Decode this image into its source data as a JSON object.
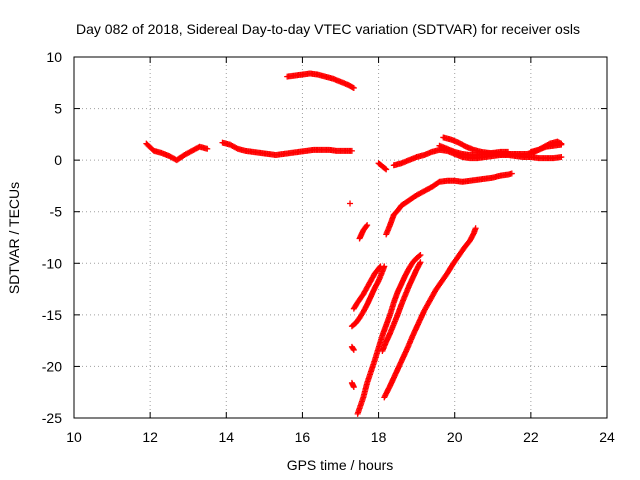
{
  "chart_data": {
    "type": "scatter",
    "title": "Day 082 of 2018, Sidereal Day-to-day VTEC variation (SDTVAR) for receiver osls",
    "xlabel": "GPS time / hours",
    "ylabel": "SDTVAR / TECUs",
    "xlim": [
      10,
      24
    ],
    "ylim": [
      -25,
      10
    ],
    "x_ticks": [
      "10",
      "12",
      "14",
      "16",
      "18",
      "20",
      "22",
      "24"
    ],
    "y_ticks": [
      "10",
      "5",
      "0",
      "-5",
      "-10",
      "-15",
      "-20",
      "-25"
    ],
    "grid": true,
    "marker_color": "#ff0000",
    "series": [
      {
        "points": [
          [
            11.9,
            1.6
          ],
          [
            12.1,
            0.9
          ],
          [
            12.3,
            0.7
          ],
          [
            12.5,
            0.4
          ],
          [
            12.7,
            0.0
          ],
          [
            12.9,
            0.5
          ],
          [
            13.1,
            0.9
          ],
          [
            13.3,
            1.3
          ],
          [
            13.5,
            1.1
          ]
        ]
      },
      {
        "points": [
          [
            13.9,
            1.7
          ],
          [
            14.1,
            1.5
          ],
          [
            14.3,
            1.1
          ],
          [
            14.5,
            0.9
          ],
          [
            14.7,
            0.8
          ],
          [
            14.9,
            0.7
          ],
          [
            15.1,
            0.6
          ],
          [
            15.3,
            0.5
          ],
          [
            15.5,
            0.6
          ],
          [
            15.7,
            0.7
          ],
          [
            15.9,
            0.8
          ],
          [
            16.1,
            0.9
          ],
          [
            16.3,
            1.0
          ],
          [
            16.5,
            1.0
          ],
          [
            16.7,
            1.0
          ],
          [
            16.9,
            0.9
          ],
          [
            17.1,
            0.9
          ],
          [
            17.3,
            0.9
          ]
        ]
      },
      {
        "points": [
          [
            15.6,
            8.1
          ],
          [
            15.8,
            8.2
          ],
          [
            16.0,
            8.3
          ],
          [
            16.2,
            8.4
          ],
          [
            16.4,
            8.3
          ],
          [
            16.6,
            8.1
          ],
          [
            16.8,
            7.9
          ],
          [
            17.0,
            7.6
          ],
          [
            17.2,
            7.3
          ],
          [
            17.35,
            7.0
          ]
        ]
      },
      {
        "points": [
          [
            18.4,
            -0.5
          ],
          [
            18.6,
            -0.3
          ],
          [
            18.8,
            0.0
          ],
          [
            19.0,
            0.3
          ],
          [
            19.2,
            0.5
          ],
          [
            19.4,
            0.8
          ],
          [
            19.6,
            1.0
          ],
          [
            19.8,
            0.9
          ],
          [
            20.0,
            0.6
          ],
          [
            20.2,
            0.3
          ],
          [
            20.4,
            0.2
          ],
          [
            20.6,
            0.2
          ],
          [
            20.8,
            0.3
          ],
          [
            21.0,
            0.4
          ],
          [
            21.2,
            0.5
          ],
          [
            21.4,
            0.5
          ],
          [
            21.6,
            0.4
          ],
          [
            21.8,
            0.3
          ],
          [
            22.0,
            0.3
          ],
          [
            22.2,
            0.2
          ],
          [
            22.4,
            0.2
          ],
          [
            22.6,
            0.2
          ],
          [
            22.8,
            0.3
          ]
        ]
      },
      {
        "points": [
          [
            19.7,
            2.2
          ],
          [
            19.9,
            2.0
          ],
          [
            20.1,
            1.7
          ],
          [
            20.3,
            1.3
          ],
          [
            20.5,
            1.0
          ],
          [
            20.7,
            0.8
          ],
          [
            20.9,
            0.7
          ],
          [
            21.1,
            0.6
          ],
          [
            21.3,
            0.6
          ],
          [
            21.5,
            0.6
          ],
          [
            21.7,
            0.6
          ],
          [
            21.9,
            0.6
          ],
          [
            22.1,
            0.8
          ],
          [
            22.3,
            1.2
          ],
          [
            22.5,
            1.6
          ],
          [
            22.7,
            1.8
          ],
          [
            22.8,
            1.6
          ]
        ]
      },
      {
        "points": [
          [
            19.6,
            1.4
          ],
          [
            19.8,
            1.1
          ],
          [
            20.0,
            0.8
          ],
          [
            20.2,
            0.6
          ],
          [
            20.4,
            0.5
          ],
          [
            20.6,
            0.5
          ],
          [
            20.8,
            0.6
          ],
          [
            21.0,
            0.7
          ],
          [
            21.2,
            0.8
          ],
          [
            21.4,
            0.8
          ]
        ]
      },
      {
        "points": [
          [
            22.0,
            0.8
          ],
          [
            22.2,
            1.0
          ],
          [
            22.4,
            1.3
          ],
          [
            22.6,
            1.4
          ],
          [
            22.8,
            1.5
          ]
        ]
      },
      {
        "points": [
          [
            18.0,
            -0.3
          ],
          [
            18.1,
            -0.6
          ],
          [
            18.2,
            -0.9
          ]
        ]
      },
      {
        "points": [
          [
            18.2,
            -7.2
          ],
          [
            18.3,
            -6.3
          ],
          [
            18.4,
            -5.3
          ],
          [
            18.5,
            -4.9
          ],
          [
            18.6,
            -4.4
          ],
          [
            18.8,
            -3.9
          ],
          [
            19.0,
            -3.4
          ],
          [
            19.2,
            -3.0
          ],
          [
            19.4,
            -2.6
          ],
          [
            19.6,
            -2.1
          ],
          [
            19.8,
            -2.0
          ],
          [
            20.0,
            -2.0
          ],
          [
            20.2,
            -2.1
          ],
          [
            20.4,
            -2.0
          ],
          [
            20.6,
            -1.9
          ],
          [
            20.8,
            -1.8
          ],
          [
            21.0,
            -1.7
          ],
          [
            21.2,
            -1.5
          ],
          [
            21.4,
            -1.4
          ],
          [
            21.5,
            -1.3
          ]
        ]
      },
      {
        "points": [
          [
            17.25,
            -4.2
          ]
        ]
      },
      {
        "points": [
          [
            17.5,
            -7.6
          ],
          [
            17.6,
            -6.8
          ],
          [
            17.7,
            -6.3
          ]
        ]
      },
      {
        "points": [
          [
            17.3,
            -16.1
          ],
          [
            17.4,
            -15.8
          ],
          [
            17.5,
            -15.3
          ],
          [
            17.6,
            -14.7
          ],
          [
            17.7,
            -14.0
          ],
          [
            17.8,
            -13.2
          ],
          [
            17.9,
            -12.4
          ],
          [
            18.0,
            -11.7
          ],
          [
            18.1,
            -10.8
          ],
          [
            18.15,
            -10.3
          ]
        ]
      },
      {
        "points": [
          [
            17.35,
            -14.4
          ],
          [
            17.45,
            -13.8
          ],
          [
            17.6,
            -13.0
          ],
          [
            17.75,
            -12.0
          ],
          [
            17.9,
            -11.0
          ],
          [
            18.05,
            -10.3
          ]
        ]
      },
      {
        "points": [
          [
            17.3,
            -18.1
          ],
          [
            17.35,
            -18.4
          ]
        ]
      },
      {
        "points": [
          [
            17.3,
            -21.6
          ],
          [
            17.35,
            -22.0
          ]
        ]
      },
      {
        "points": [
          [
            17.45,
            -24.6
          ],
          [
            17.6,
            -23.0
          ],
          [
            17.7,
            -21.6
          ],
          [
            17.8,
            -20.5
          ],
          [
            17.9,
            -19.4
          ],
          [
            18.0,
            -18.2
          ],
          [
            18.1,
            -17.0
          ],
          [
            18.2,
            -16.0
          ],
          [
            18.3,
            -15.0
          ],
          [
            18.4,
            -13.8
          ],
          [
            18.5,
            -12.8
          ],
          [
            18.6,
            -12.0
          ],
          [
            18.7,
            -11.2
          ],
          [
            18.8,
            -10.5
          ],
          [
            18.9,
            -9.9
          ],
          [
            19.0,
            -9.5
          ],
          [
            19.1,
            -9.2
          ]
        ]
      },
      {
        "points": [
          [
            18.1,
            -18.5
          ],
          [
            18.2,
            -17.6
          ],
          [
            18.3,
            -16.8
          ],
          [
            18.4,
            -15.9
          ],
          [
            18.5,
            -15.0
          ],
          [
            18.6,
            -14.0
          ],
          [
            18.7,
            -13.1
          ],
          [
            18.8,
            -12.2
          ],
          [
            18.9,
            -11.4
          ],
          [
            19.0,
            -10.6
          ],
          [
            19.1,
            -9.9
          ]
        ]
      },
      {
        "points": [
          [
            18.15,
            -23.0
          ],
          [
            18.3,
            -21.9
          ],
          [
            18.45,
            -20.7
          ],
          [
            18.6,
            -19.5
          ],
          [
            18.75,
            -18.3
          ],
          [
            18.9,
            -17.0
          ],
          [
            19.05,
            -15.8
          ],
          [
            19.2,
            -14.6
          ],
          [
            19.35,
            -13.6
          ],
          [
            19.5,
            -12.6
          ],
          [
            19.65,
            -11.8
          ],
          [
            19.8,
            -11.0
          ],
          [
            19.95,
            -10.1
          ],
          [
            20.1,
            -9.3
          ],
          [
            20.25,
            -8.5
          ],
          [
            20.4,
            -7.8
          ],
          [
            20.5,
            -7.1
          ],
          [
            20.55,
            -6.6
          ]
        ]
      }
    ]
  }
}
